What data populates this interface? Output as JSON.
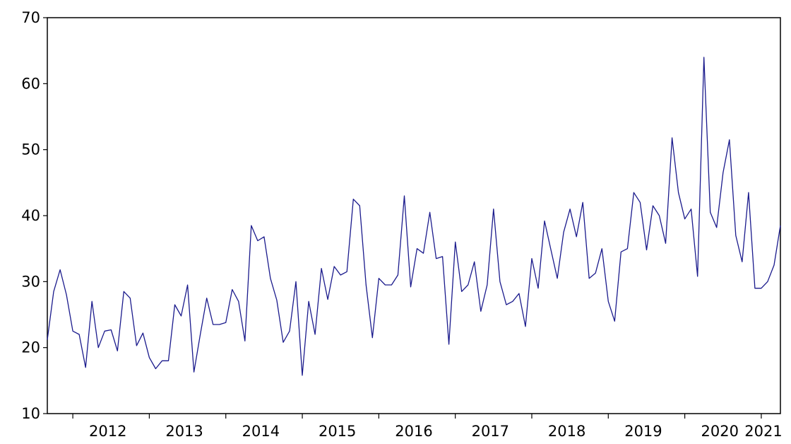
{
  "chart_data": {
    "type": "line",
    "title": "",
    "xlabel": "",
    "ylabel": "",
    "ylim": [
      10,
      70
    ],
    "yticks": [
      "10",
      "20",
      "30",
      "40",
      "50",
      "60",
      "70"
    ],
    "year_labels": [
      "2012",
      "2013",
      "2014",
      "2015",
      "2016",
      "2017",
      "2018",
      "2019",
      "2020",
      "2021"
    ],
    "x_start": "2011-09",
    "frequency": "monthly",
    "grid": false,
    "legend": "none",
    "line_color": "#1a1a8c",
    "series": [
      {
        "values": [
          21.2,
          28.5,
          31.8,
          28.0,
          22.5,
          22.0,
          17.0,
          27.0,
          20.0,
          22.5,
          22.7,
          19.5,
          28.5,
          27.5,
          20.3,
          22.2,
          18.5,
          16.8,
          18.0,
          18.0,
          26.5,
          24.8,
          29.5,
          16.3,
          22.0,
          27.5,
          23.5,
          23.5,
          23.8,
          28.8,
          27.0,
          21.0,
          38.5,
          36.2,
          36.8,
          30.5,
          27.2,
          20.8,
          22.5,
          30.0,
          15.8,
          27.0,
          22.0,
          32.0,
          27.3,
          32.3,
          31.0,
          31.5,
          42.5,
          41.5,
          29.5,
          21.5,
          30.5,
          29.5,
          29.5,
          31.0,
          43.0,
          29.2,
          35.0,
          34.3,
          40.5,
          33.5,
          33.8,
          20.5,
          36.0,
          28.5,
          29.5,
          33.0,
          25.5,
          29.5,
          41.0,
          30.0,
          26.5,
          27.0,
          28.2,
          23.2,
          33.5,
          29.0,
          39.2,
          34.8,
          30.5,
          37.5,
          41.0,
          36.8,
          42.0,
          30.5,
          31.3,
          35.0,
          27.0,
          24.0,
          34.5,
          35.0,
          43.5,
          42.0,
          34.8,
          41.5,
          40.0,
          35.8,
          51.8,
          43.5,
          39.5,
          41.0,
          30.8,
          64.0,
          40.5,
          38.2,
          46.5,
          51.5,
          37.0,
          33.0,
          43.5,
          29.0,
          29.0,
          30.0,
          32.5,
          38.5
        ]
      }
    ]
  }
}
